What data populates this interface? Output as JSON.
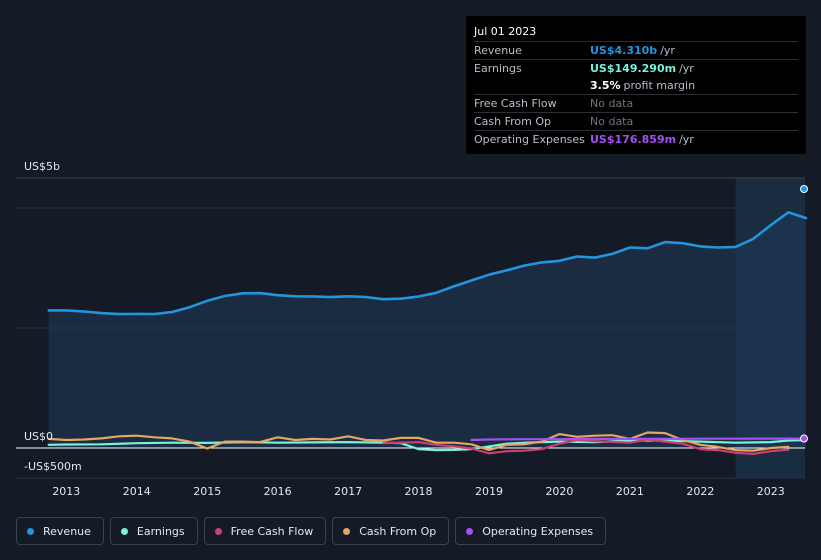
{
  "tooltip": {
    "date": "Jul 01 2023",
    "revenue_label": "Revenue",
    "revenue_value": "US$4.310b",
    "revenue_unit": "/yr",
    "earnings_label": "Earnings",
    "earnings_value": "US$149.290m",
    "earnings_unit": "/yr",
    "margin_value": "3.5%",
    "margin_text": "profit margin",
    "fcf_label": "Free Cash Flow",
    "fcf_value": "No data",
    "cfo_label": "Cash From Op",
    "cfo_value": "No data",
    "opex_label": "Operating Expenses",
    "opex_value": "US$176.859m",
    "opex_unit": "/yr"
  },
  "legend": [
    {
      "label": "Revenue",
      "color": "#2394df"
    },
    {
      "label": "Earnings",
      "color": "#79f2dc"
    },
    {
      "label": "Free Cash Flow",
      "color": "#cc3f73"
    },
    {
      "label": "Cash From Op",
      "color": "#e6a562"
    },
    {
      "label": "Operating Expenses",
      "color": "#a450f0"
    }
  ],
  "chart_data": {
    "type": "line",
    "ylabels": {
      "top": "US$5b",
      "zero": "US$0",
      "bottom": "-US$500m"
    },
    "ylim": [
      -500,
      5000
    ],
    "xlim": [
      2012.3,
      2023.5
    ],
    "x_ticks": [
      {
        "x": 2013,
        "label": "2013"
      },
      {
        "x": 2014,
        "label": "2014"
      },
      {
        "x": 2015,
        "label": "2015"
      },
      {
        "x": 2016,
        "label": "2016"
      },
      {
        "x": 2017,
        "label": "2017"
      },
      {
        "x": 2018,
        "label": "2018"
      },
      {
        "x": 2019,
        "label": "2019"
      },
      {
        "x": 2020,
        "label": "2020"
      },
      {
        "x": 2021,
        "label": "2021"
      },
      {
        "x": 2022,
        "label": "2022"
      },
      {
        "x": 2023,
        "label": "2023"
      }
    ],
    "highlight_start": 2022.5,
    "series": [
      {
        "name": "Revenue",
        "color": "#2394df",
        "points": [
          [
            2012.75,
            2580
          ],
          [
            2013.0,
            2580
          ],
          [
            2013.25,
            2560
          ],
          [
            2013.5,
            2530
          ],
          [
            2013.75,
            2510
          ],
          [
            2014.0,
            2515
          ],
          [
            2014.25,
            2510
          ],
          [
            2014.5,
            2550
          ],
          [
            2014.75,
            2640
          ],
          [
            2015.0,
            2760
          ],
          [
            2015.25,
            2850
          ],
          [
            2015.5,
            2900
          ],
          [
            2015.75,
            2905
          ],
          [
            2016.0,
            2865
          ],
          [
            2016.25,
            2845
          ],
          [
            2016.5,
            2842
          ],
          [
            2016.75,
            2830
          ],
          [
            2017.0,
            2845
          ],
          [
            2017.25,
            2832
          ],
          [
            2017.5,
            2790
          ],
          [
            2017.75,
            2800
          ],
          [
            2018.0,
            2840
          ],
          [
            2018.25,
            2910
          ],
          [
            2018.5,
            3030
          ],
          [
            2018.75,
            3140
          ],
          [
            2019.0,
            3250
          ],
          [
            2019.25,
            3330
          ],
          [
            2019.5,
            3420
          ],
          [
            2019.75,
            3480
          ],
          [
            2020.0,
            3510
          ],
          [
            2020.25,
            3590
          ],
          [
            2020.5,
            3570
          ],
          [
            2020.75,
            3640
          ],
          [
            2021.0,
            3760
          ],
          [
            2021.25,
            3745
          ],
          [
            2021.5,
            3860
          ],
          [
            2021.75,
            3840
          ],
          [
            2022.0,
            3780
          ],
          [
            2022.25,
            3760
          ],
          [
            2022.5,
            3770
          ],
          [
            2022.75,
            3920
          ],
          [
            2023.0,
            4180
          ],
          [
            2023.25,
            4420
          ],
          [
            2023.5,
            4310
          ]
        ]
      },
      {
        "name": "Earnings",
        "color": "#79f2dc",
        "points": [
          [
            2012.75,
            60
          ],
          [
            2013.0,
            65
          ],
          [
            2013.5,
            70
          ],
          [
            2014.0,
            90
          ],
          [
            2014.5,
            100
          ],
          [
            2015.0,
            95
          ],
          [
            2015.5,
            110
          ],
          [
            2016.0,
            100
          ],
          [
            2016.5,
            105
          ],
          [
            2017.0,
            110
          ],
          [
            2017.5,
            100
          ],
          [
            2017.75,
            90
          ],
          [
            2018.0,
            -20
          ],
          [
            2018.25,
            -40
          ],
          [
            2018.5,
            -35
          ],
          [
            2018.75,
            -20
          ],
          [
            2019.0,
            30
          ],
          [
            2019.25,
            80
          ],
          [
            2019.5,
            100
          ],
          [
            2019.75,
            110
          ],
          [
            2020.0,
            120
          ],
          [
            2020.5,
            110
          ],
          [
            2021.0,
            140
          ],
          [
            2021.5,
            140
          ],
          [
            2022.0,
            120
          ],
          [
            2022.5,
            100
          ],
          [
            2023.0,
            110
          ],
          [
            2023.25,
            140
          ],
          [
            2023.5,
            149
          ]
        ]
      },
      {
        "name": "Free Cash Flow",
        "color": "#cc3f73",
        "points": [
          [
            2017.5,
            90
          ],
          [
            2018.0,
            110
          ],
          [
            2018.25,
            60
          ],
          [
            2018.5,
            30
          ],
          [
            2018.75,
            -10
          ],
          [
            2019.0,
            -100
          ],
          [
            2019.25,
            -60
          ],
          [
            2019.5,
            -50
          ],
          [
            2019.75,
            -20
          ],
          [
            2020.0,
            80
          ],
          [
            2020.25,
            150
          ],
          [
            2020.5,
            130
          ],
          [
            2021.0,
            100
          ],
          [
            2021.25,
            160
          ],
          [
            2021.5,
            120
          ],
          [
            2021.75,
            80
          ],
          [
            2022.0,
            -20
          ],
          [
            2022.25,
            -40
          ],
          [
            2022.5,
            -90
          ],
          [
            2022.75,
            -110
          ],
          [
            2023.0,
            -60
          ],
          [
            2023.25,
            -30
          ]
        ]
      },
      {
        "name": "Cash From Op",
        "color": "#e6a562",
        "points": [
          [
            2012.75,
            170
          ],
          [
            2013.0,
            150
          ],
          [
            2013.25,
            160
          ],
          [
            2013.5,
            180
          ],
          [
            2013.75,
            220
          ],
          [
            2014.0,
            230
          ],
          [
            2014.25,
            200
          ],
          [
            2014.5,
            180
          ],
          [
            2014.75,
            120
          ],
          [
            2015.0,
            -10
          ],
          [
            2015.25,
            120
          ],
          [
            2015.5,
            120
          ],
          [
            2015.75,
            110
          ],
          [
            2016.0,
            200
          ],
          [
            2016.25,
            150
          ],
          [
            2016.5,
            170
          ],
          [
            2016.75,
            160
          ],
          [
            2017.0,
            220
          ],
          [
            2017.25,
            150
          ],
          [
            2017.5,
            140
          ],
          [
            2017.75,
            190
          ],
          [
            2018.0,
            190
          ],
          [
            2018.25,
            100
          ],
          [
            2018.5,
            100
          ],
          [
            2018.75,
            70
          ],
          [
            2019.0,
            -40
          ],
          [
            2019.25,
            60
          ],
          [
            2019.5,
            70
          ],
          [
            2019.75,
            120
          ],
          [
            2020.0,
            260
          ],
          [
            2020.25,
            210
          ],
          [
            2020.5,
            230
          ],
          [
            2020.75,
            240
          ],
          [
            2021.0,
            170
          ],
          [
            2021.25,
            290
          ],
          [
            2021.5,
            280
          ],
          [
            2021.75,
            150
          ],
          [
            2022.0,
            60
          ],
          [
            2022.25,
            20
          ],
          [
            2022.5,
            -40
          ],
          [
            2022.75,
            -50
          ],
          [
            2023.0,
            0
          ],
          [
            2023.25,
            20
          ]
        ]
      },
      {
        "name": "Operating Expenses",
        "color": "#a450f0",
        "points": [
          [
            2018.75,
            150
          ],
          [
            2019.0,
            160
          ],
          [
            2019.5,
            165
          ],
          [
            2020.0,
            165
          ],
          [
            2020.5,
            170
          ],
          [
            2021.0,
            170
          ],
          [
            2021.5,
            172
          ],
          [
            2022.0,
            174
          ],
          [
            2022.5,
            175
          ],
          [
            2023.0,
            176
          ],
          [
            2023.5,
            177
          ]
        ]
      }
    ]
  }
}
